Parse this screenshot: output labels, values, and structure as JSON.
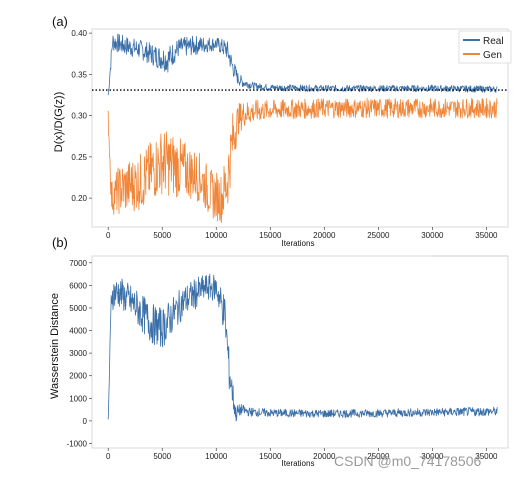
{
  "chart_data": [
    {
      "panel_label": "(a)",
      "type": "line",
      "xlabel": "Iterations",
      "ylabel": "D(x)/D(G(z))",
      "xlim": [
        -1500,
        37000
      ],
      "ylim": [
        0.165,
        0.405
      ],
      "x_ticks": [
        0,
        5000,
        10000,
        15000,
        20000,
        25000,
        30000,
        35000
      ],
      "y_ticks": [
        0.2,
        0.25,
        0.3,
        0.35,
        0.4
      ],
      "y_tick_labels": [
        "0.20",
        "0.25",
        "0.30",
        "0.35",
        "0.40"
      ],
      "reference_line": {
        "y": 0.331,
        "style": "dotted",
        "color": "#000000"
      },
      "legend": {
        "placement": "top-right",
        "entries": [
          "Real",
          "Gen"
        ]
      },
      "series": [
        {
          "name": "Real",
          "color": "#3a6fa8",
          "x": [
            0,
            400,
            1500,
            3000,
            4500,
            5500,
            6500,
            8000,
            9000,
            10000,
            11000,
            11500,
            12000,
            12500,
            13500,
            15000,
            20000,
            25000,
            30000,
            36000
          ],
          "y": [
            0.325,
            0.39,
            0.385,
            0.38,
            0.372,
            0.368,
            0.382,
            0.385,
            0.386,
            0.387,
            0.38,
            0.36,
            0.345,
            0.34,
            0.336,
            0.334,
            0.333,
            0.333,
            0.333,
            0.332
          ],
          "noise": [
            0.005,
            0.012,
            0.012,
            0.012,
            0.014,
            0.016,
            0.012,
            0.012,
            0.01,
            0.008,
            0.012,
            0.012,
            0.008,
            0.006,
            0.004,
            0.004,
            0.004,
            0.004,
            0.004,
            0.004
          ]
        },
        {
          "name": "Gen",
          "color": "#f08538",
          "x": [
            0,
            300,
            1000,
            3000,
            5000,
            6000,
            7000,
            8500,
            9500,
            10500,
            11000,
            11500,
            12000,
            12500,
            13500,
            15000,
            20000,
            25000,
            30000,
            36000
          ],
          "y": [
            0.3,
            0.2,
            0.21,
            0.22,
            0.245,
            0.24,
            0.235,
            0.225,
            0.205,
            0.2,
            0.22,
            0.27,
            0.295,
            0.302,
            0.305,
            0.307,
            0.309,
            0.309,
            0.309,
            0.309
          ],
          "noise": [
            0.01,
            0.02,
            0.03,
            0.035,
            0.04,
            0.04,
            0.035,
            0.03,
            0.03,
            0.03,
            0.04,
            0.035,
            0.02,
            0.016,
            0.014,
            0.012,
            0.012,
            0.012,
            0.012,
            0.012
          ]
        }
      ]
    },
    {
      "panel_label": "(b)",
      "type": "line",
      "xlabel": "Iterations",
      "ylabel": "Wasserstein Distance",
      "xlim": [
        -1500,
        37000
      ],
      "ylim": [
        -1200,
        7300
      ],
      "x_ticks": [
        0,
        5000,
        10000,
        15000,
        20000,
        25000,
        30000,
        35000
      ],
      "y_ticks": [
        -1000,
        0,
        1000,
        2000,
        3000,
        4000,
        5000,
        6000,
        7000
      ],
      "y_tick_labels": [
        "-1000",
        "0",
        "1000",
        "2000",
        "3000",
        "4000",
        "5000",
        "6000",
        "7000"
      ],
      "series": [
        {
          "color": "#3a6fa8",
          "x": [
            0,
            300,
            1000,
            2500,
            4000,
            5000,
            6000,
            7000,
            8000,
            9000,
            10000,
            10800,
            11200,
            11800,
            12300,
            13000,
            15000,
            20000,
            25000,
            30000,
            36000
          ],
          "y": [
            0,
            5600,
            5700,
            5100,
            4300,
            4100,
            4700,
            5300,
            5600,
            5900,
            5900,
            4700,
            2200,
            300,
            500,
            400,
            350,
            320,
            340,
            380,
            420
          ],
          "noise": [
            200,
            700,
            700,
            800,
            900,
            900,
            800,
            700,
            700,
            600,
            600,
            900,
            900,
            400,
            250,
            200,
            180,
            180,
            180,
            190,
            200
          ]
        }
      ]
    }
  ],
  "panels": {
    "a": {
      "label": "(a)",
      "xlabel": "Iterations",
      "ylabel": "D(x)/D(G(z))",
      "legend_real": "Real",
      "legend_gen": "Gen"
    },
    "b": {
      "label": "(b)",
      "xlabel": "Iterations",
      "ylabel": "Wasserstein Distance"
    }
  },
  "watermark": "CSDN @m0_74178506"
}
